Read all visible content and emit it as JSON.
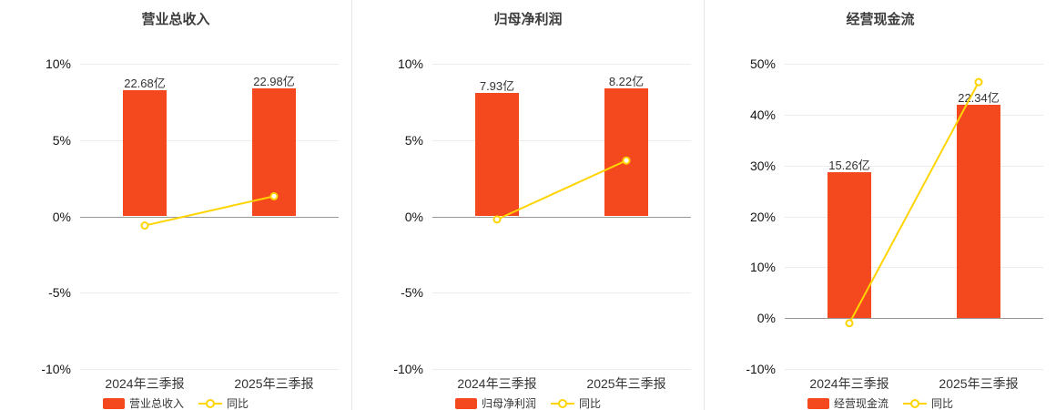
{
  "page": {
    "background": "#ffffff"
  },
  "colors": {
    "bar": "#f4481f",
    "line": "#ffd400",
    "marker_fill": "#ffffff",
    "grid": "#ececec",
    "zero_axis": "#999999",
    "title_text": "#3c3c3c",
    "tick_text": "#141414"
  },
  "chart_data": [
    {
      "type": "bar",
      "title": "营业总收入",
      "categories": [
        "2024年三季报",
        "2025年三季报"
      ],
      "ylim": [
        -10,
        10
      ],
      "ticks": [
        {
          "value": 10,
          "label": "10%"
        },
        {
          "value": 5,
          "label": "5%"
        },
        {
          "value": 0,
          "label": "0%"
        },
        {
          "value": -5,
          "label": "-5%"
        },
        {
          "value": -10,
          "label": "-10%"
        }
      ],
      "bars": {
        "name": "营业总收入",
        "unit": "亿",
        "values": [
          22.68,
          22.98
        ],
        "labels": [
          "22.68亿",
          "22.98亿"
        ]
      },
      "bar_scale_max": 27.4,
      "line": {
        "name": "同比",
        "unit": "%",
        "values": [
          -0.6,
          1.32
        ]
      },
      "legend": {
        "bar_label": "营业总收入",
        "line_label": "同比"
      }
    },
    {
      "type": "bar",
      "title": "归母净利润",
      "categories": [
        "2024年三季报",
        "2025年三季报"
      ],
      "ylim": [
        -10,
        10
      ],
      "ticks": [
        {
          "value": 10,
          "label": "10%"
        },
        {
          "value": 5,
          "label": "5%"
        },
        {
          "value": 0,
          "label": "0%"
        },
        {
          "value": -5,
          "label": "-5%"
        },
        {
          "value": -10,
          "label": "-10%"
        }
      ],
      "bars": {
        "name": "归母净利润",
        "unit": "亿",
        "values": [
          7.93,
          8.22
        ],
        "labels": [
          "7.93亿",
          "8.22亿"
        ]
      },
      "bar_scale_max": 9.8,
      "line": {
        "name": "同比",
        "unit": "%",
        "values": [
          -0.2,
          3.66
        ]
      },
      "legend": {
        "bar_label": "归母净利润",
        "line_label": "同比"
      }
    },
    {
      "type": "bar",
      "title": "经营现金流",
      "categories": [
        "2024年三季报",
        "2025年三季报"
      ],
      "ylim": [
        -10,
        50
      ],
      "ticks": [
        {
          "value": 50,
          "label": "50%"
        },
        {
          "value": 40,
          "label": "40%"
        },
        {
          "value": 30,
          "label": "30%"
        },
        {
          "value": 20,
          "label": "20%"
        },
        {
          "value": 10,
          "label": "10%"
        },
        {
          "value": 0,
          "label": "0%"
        },
        {
          "value": -10,
          "label": "-10%"
        }
      ],
      "bars": {
        "name": "经营现金流",
        "unit": "亿",
        "values": [
          15.26,
          22.34
        ],
        "labels": [
          "15.26亿",
          "22.34亿"
        ]
      },
      "bar_scale_max": 26.6,
      "line": {
        "name": "同比",
        "unit": "%",
        "values": [
          -1.0,
          46.4
        ]
      },
      "legend": {
        "bar_label": "经营现金流",
        "line_label": "同比"
      }
    }
  ]
}
